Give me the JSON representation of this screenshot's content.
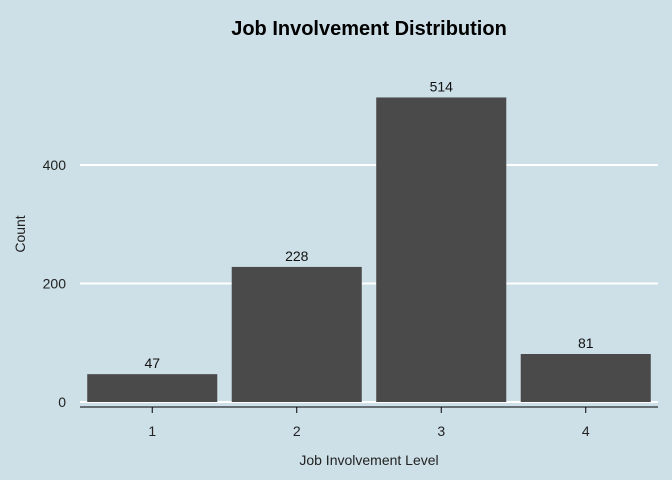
{
  "chart_data": {
    "type": "bar",
    "title": "Job Involvement Distribution",
    "xlabel": "Job Involvement Level",
    "ylabel": "Count",
    "categories": [
      "1",
      "2",
      "3",
      "4"
    ],
    "values": [
      47,
      228,
      514,
      81
    ],
    "data_labels": [
      "47",
      "228",
      "514",
      "81"
    ],
    "yticks": [
      0,
      200,
      400
    ],
    "ytick_labels": [
      "0",
      "200",
      "400"
    ],
    "ylim": [
      0,
      540
    ],
    "grid": "horizontal-major",
    "legend": "none",
    "colors": {
      "background": "#cde0e7",
      "bar": "#4a4a4a",
      "grid": "#ffffff",
      "axis": "#000000"
    }
  }
}
